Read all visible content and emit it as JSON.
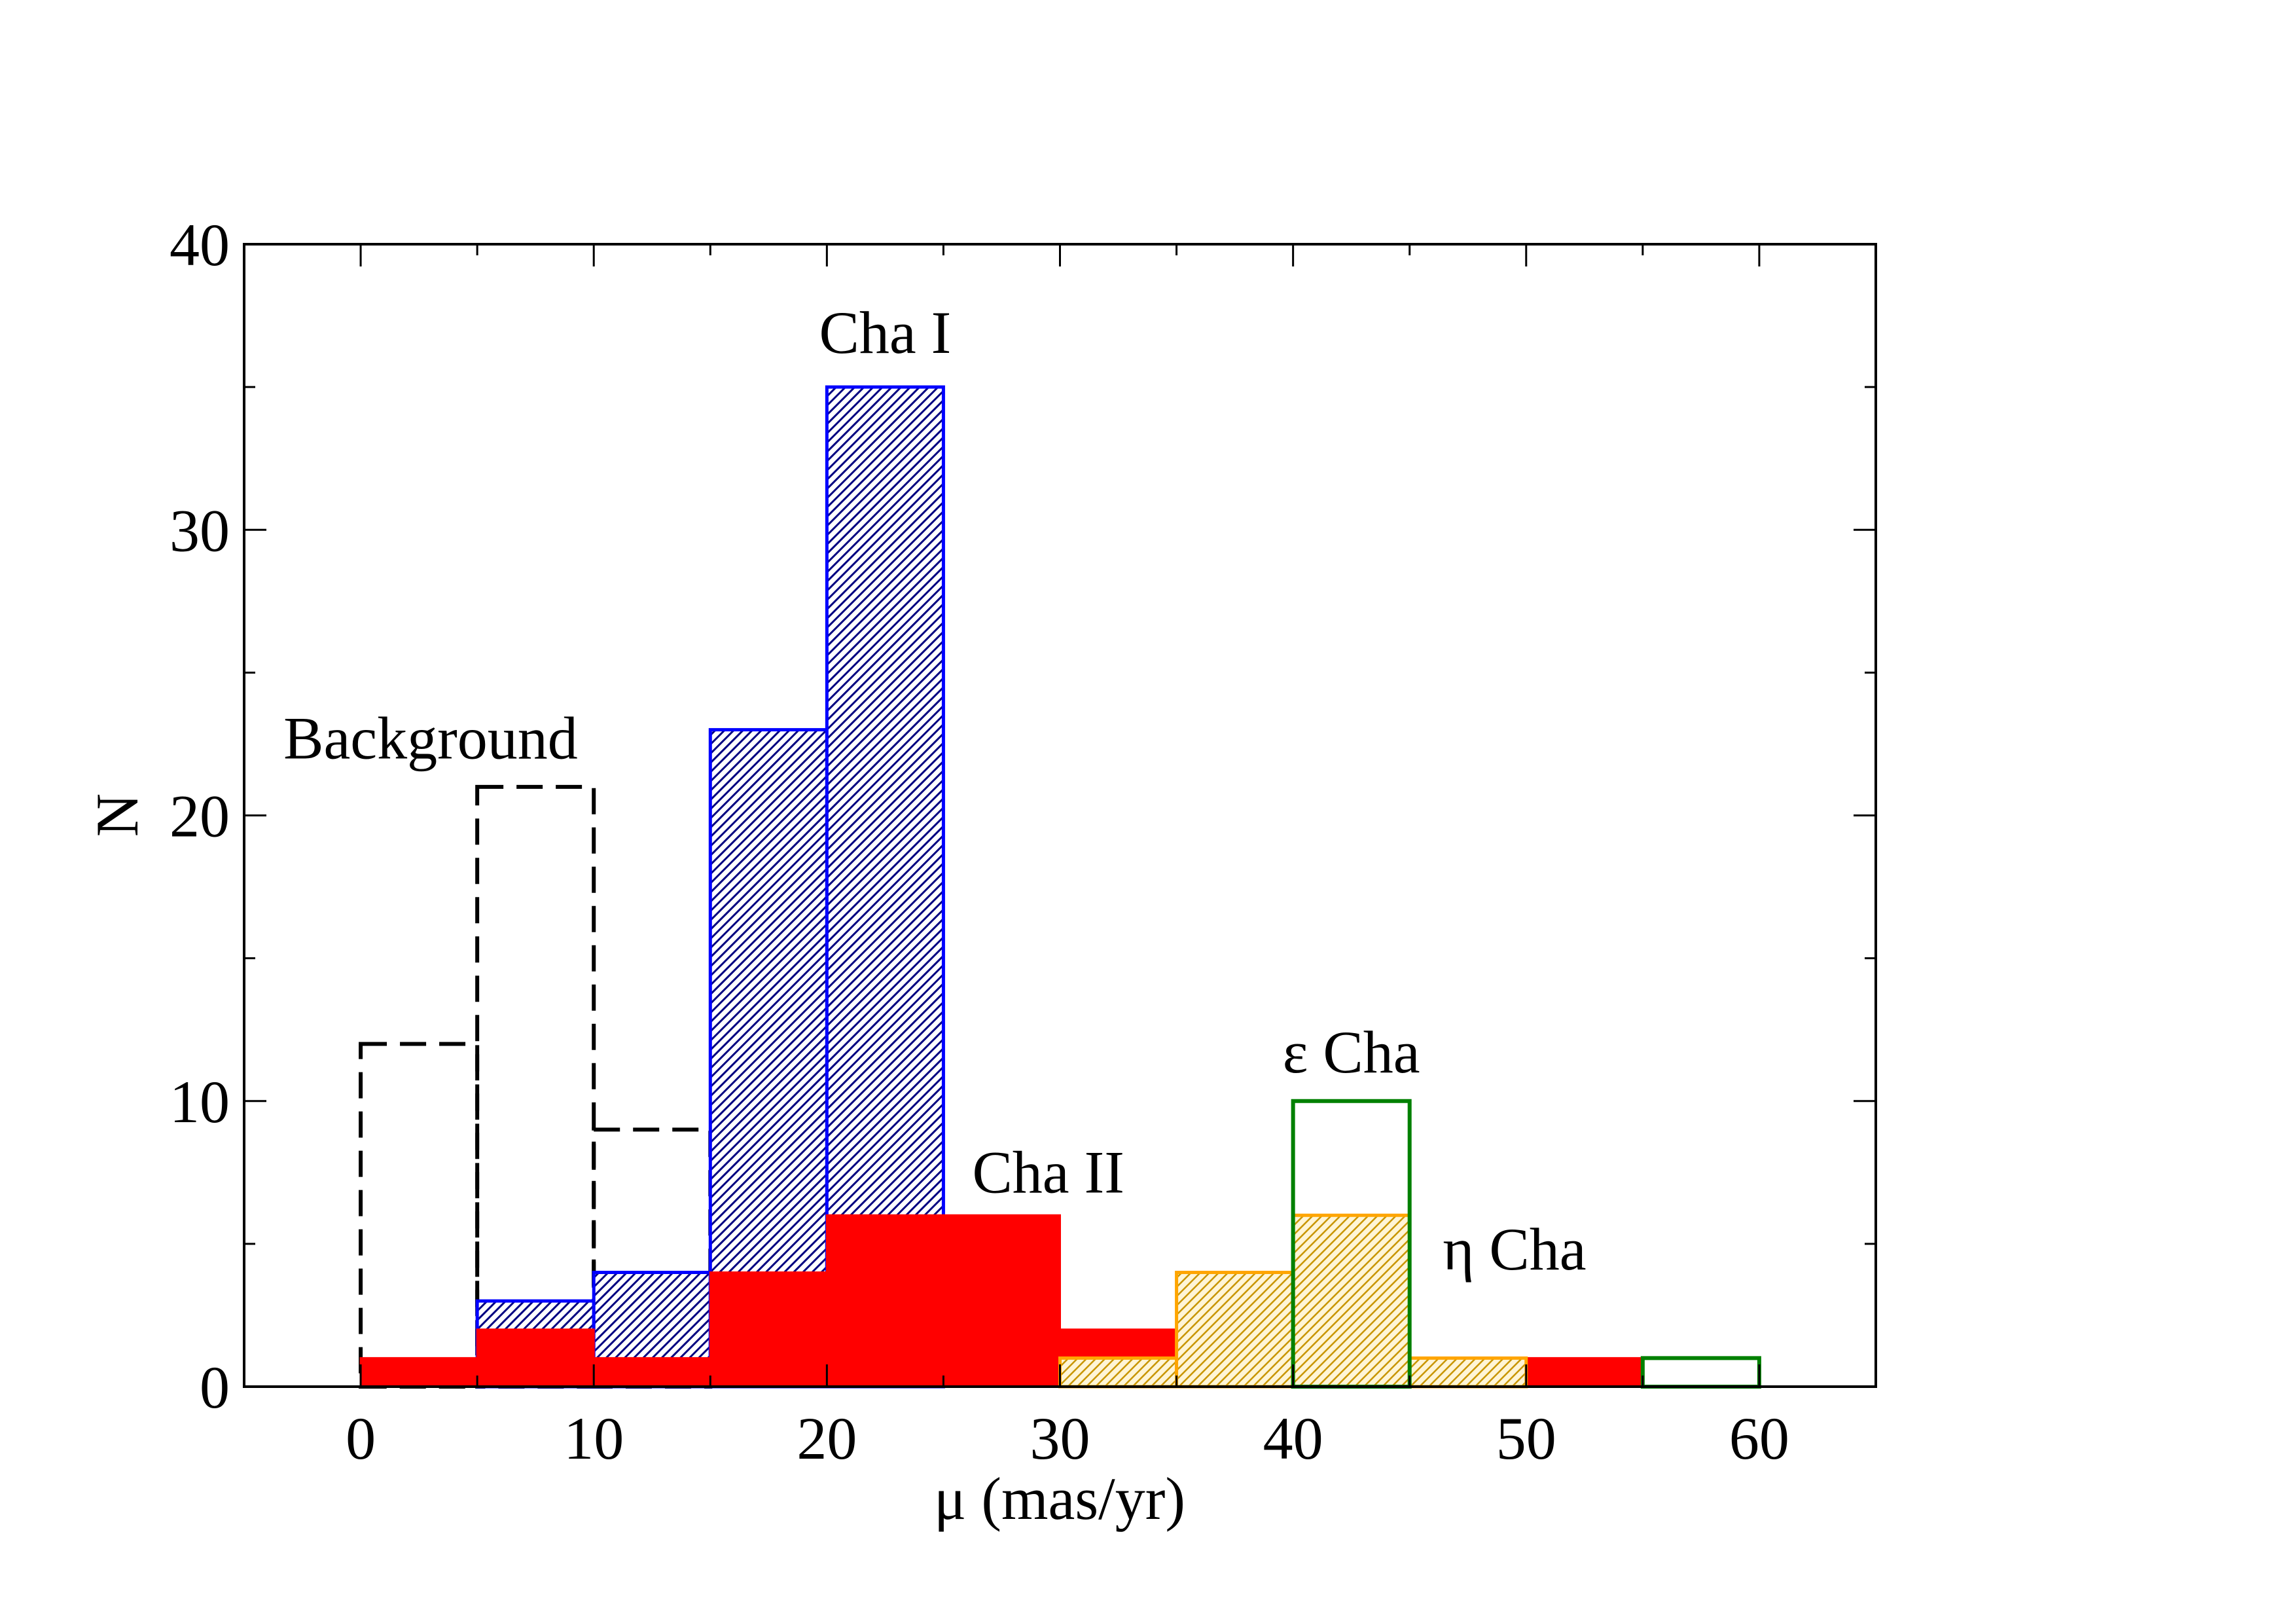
{
  "chart_data": {
    "type": "bar",
    "xlabel": "μ (mas/yr)",
    "ylabel": "N",
    "xlim": [
      -5,
      65
    ],
    "ylim": [
      0,
      40
    ],
    "xticks": [
      0,
      10,
      20,
      30,
      40,
      50,
      60
    ],
    "yticks": [
      0,
      10,
      20,
      30,
      40
    ],
    "bin_width": 5,
    "grid": false,
    "legend": "none",
    "series": [
      {
        "name": "Background",
        "style": "dashed-outline",
        "color": "#000000",
        "bins": [
          [
            0,
            12
          ],
          [
            5,
            21
          ],
          [
            10,
            9
          ]
        ]
      },
      {
        "name": "Cha I",
        "style": "hatched",
        "color": "#0000ff",
        "fill": "#000080",
        "bins": [
          [
            5,
            3
          ],
          [
            10,
            4
          ],
          [
            15,
            23
          ],
          [
            20,
            35
          ],
          [
            40,
            0
          ]
        ]
      },
      {
        "name": "Cha II",
        "style": "filled",
        "color": "#ff0000",
        "bins": [
          [
            0,
            1
          ],
          [
            5,
            2
          ],
          [
            10,
            1
          ],
          [
            15,
            4
          ],
          [
            20,
            6
          ],
          [
            25,
            6
          ],
          [
            30,
            2
          ],
          [
            35,
            0
          ],
          [
            40,
            0
          ],
          [
            45,
            0
          ],
          [
            50,
            1
          ]
        ]
      },
      {
        "name": "η Cha",
        "style": "hatched",
        "color": "#ffa500",
        "fill": "#c89500",
        "bins": [
          [
            30,
            1
          ],
          [
            35,
            4
          ],
          [
            40,
            6
          ],
          [
            45,
            1
          ],
          [
            55,
            0
          ]
        ]
      },
      {
        "name": "ε Cha",
        "style": "outline",
        "color": "#008000",
        "bins": [
          [
            30,
            0
          ],
          [
            40,
            10
          ],
          [
            55,
            1
          ]
        ]
      }
    ],
    "annotations": [
      {
        "text": "Background",
        "x": 3,
        "y": 22
      },
      {
        "text": "Cha I",
        "x": 22.5,
        "y": 36.2
      },
      {
        "text": "Cha II",
        "x": 29.5,
        "y": 6.8
      },
      {
        "text": "ε Cha",
        "x": 42.5,
        "y": 11
      },
      {
        "text": "η Cha",
        "x": 49.5,
        "y": 4.1
      }
    ]
  }
}
